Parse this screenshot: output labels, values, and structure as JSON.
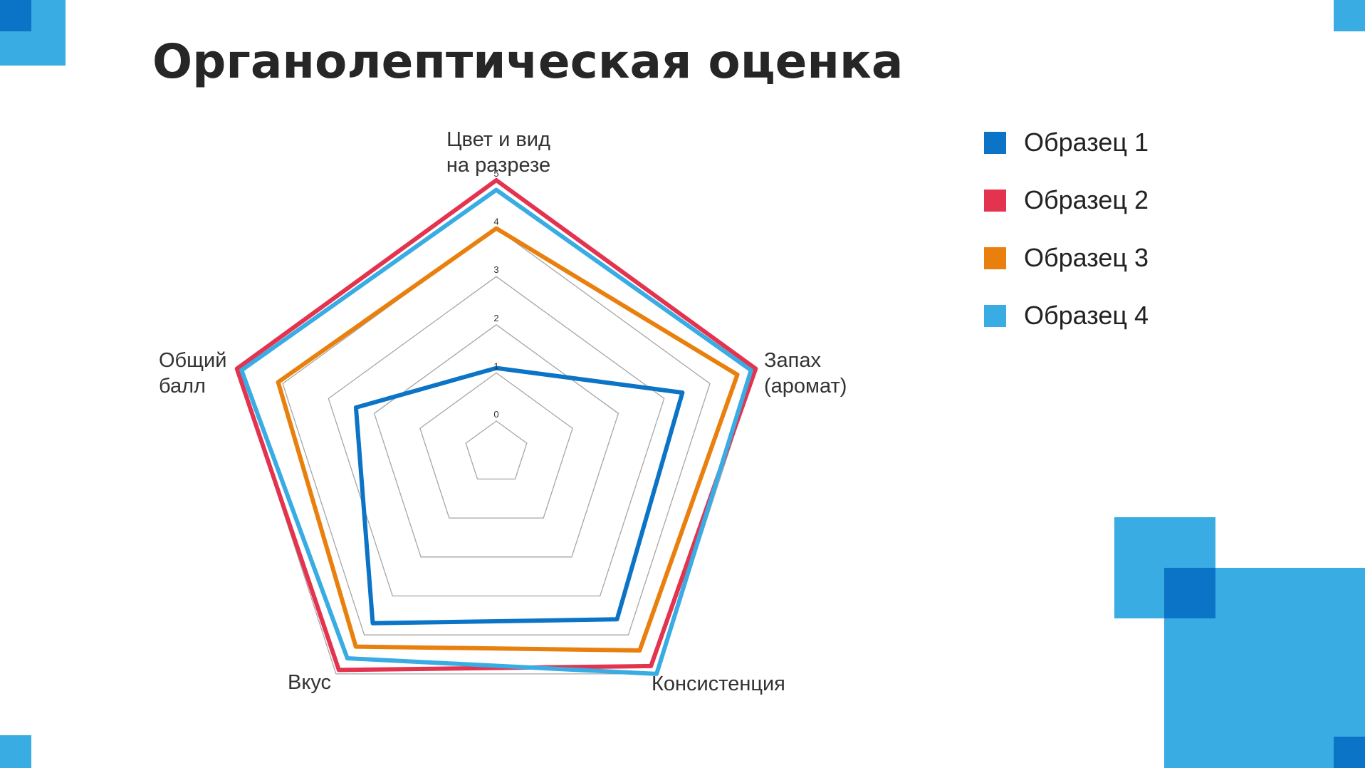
{
  "title": "Органолептическая оценка",
  "colors": {
    "accent_light": "#39ACE3",
    "accent_dark": "#0B74C6",
    "grid": "#A6A6A6"
  },
  "chart_data": {
    "type": "radar",
    "axes": [
      "Цвет и вид\nна разрезе",
      "Запах\n(аромат)",
      "Консистенция",
      "Вкус",
      "Общий\nбалл"
    ],
    "rlim": [
      0,
      5
    ],
    "ticks": [
      "0",
      "1",
      "2",
      "3",
      "4",
      "5"
    ],
    "grid": true,
    "legend": "right",
    "series": [
      {
        "name": "Образец 1",
        "color": "#0B74C6",
        "values": [
          1.1,
          3.4,
          3.6,
          3.7,
          2.4
        ]
      },
      {
        "name": "Образец 2",
        "color": "#E4334F",
        "values": [
          5,
          5,
          4.8,
          4.9,
          5
        ]
      },
      {
        "name": "Образец 3",
        "color": "#E9800E",
        "values": [
          4,
          4.6,
          4.4,
          4.3,
          4.1
        ]
      },
      {
        "name": "Образец 4",
        "color": "#39ACE3",
        "values": [
          4.8,
          4.9,
          5,
          4.6,
          4.9
        ]
      }
    ]
  }
}
